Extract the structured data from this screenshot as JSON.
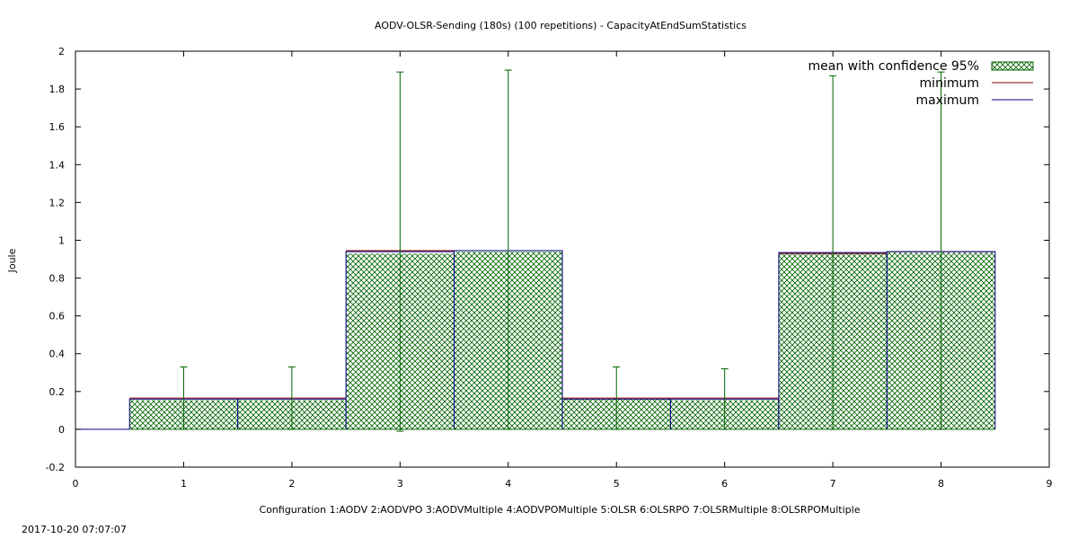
{
  "chart_data": {
    "type": "bar",
    "title": "AODV-OLSR-Sending (180s) (100 repetitions) - CapacityAtEndSumStatistics",
    "ylabel": "Joule",
    "xlabel": "Configuration 1:AODV  2:AODVPO  3:AODVMultiple  4:AODVPOMultiple  5:OLSR  6:OLSRPO  7:OLSRMultiple  8:OLSRPOMultiple",
    "xlim": [
      0,
      9
    ],
    "ylim": [
      -0.2,
      2
    ],
    "x_ticks": [
      0,
      1,
      2,
      3,
      4,
      5,
      6,
      7,
      8,
      9
    ],
    "y_ticks": [
      -0.2,
      0,
      0.2,
      0.4,
      0.6,
      0.8,
      1,
      1.2,
      1.4,
      1.6,
      1.8,
      2
    ],
    "grid": false,
    "legend_position": "top-right",
    "categories": [
      1,
      2,
      3,
      4,
      5,
      6,
      7,
      8
    ],
    "bar_width": 1.0,
    "series": [
      {
        "name": "mean with confidence 95%",
        "values": [
          0.155,
          0.155,
          0.93,
          0.94,
          0.16,
          0.155,
          0.93,
          0.935
        ],
        "color": "#006400"
      },
      {
        "name": "minimum",
        "values": [
          0.165,
          0.165,
          0.945,
          0.945,
          0.165,
          0.165,
          0.93,
          0.94
        ],
        "color": "#8b0000"
      },
      {
        "name": "maximum",
        "values": [
          0.16,
          0.16,
          0.94,
          0.945,
          0.16,
          0.16,
          0.935,
          0.94
        ],
        "color": "#000080"
      }
    ],
    "error_bars": [
      {
        "x": 1,
        "low": 0.0,
        "high": 0.33
      },
      {
        "x": 2,
        "low": 0.0,
        "high": 0.33
      },
      {
        "x": 3,
        "low": -0.01,
        "high": 1.89
      },
      {
        "x": 4,
        "low": 0.0,
        "high": 1.9
      },
      {
        "x": 5,
        "low": 0.0,
        "high": 0.33
      },
      {
        "x": 6,
        "low": 0.0,
        "high": 0.32
      },
      {
        "x": 7,
        "low": 0.0,
        "high": 1.87
      },
      {
        "x": 8,
        "low": 0.0,
        "high": 1.89
      }
    ],
    "timestamp": "2017-10-20 07:07:07"
  }
}
